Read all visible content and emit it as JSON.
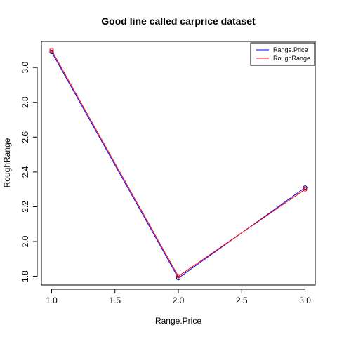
{
  "chart_data": {
    "type": "line",
    "title": "Good line called carprice dataset",
    "xlabel": "Range.Price",
    "ylabel": "RoughRange",
    "xlim": [
      0.92,
      3.08
    ],
    "ylim": [
      1.75,
      3.15
    ],
    "x_ticks": [
      "1.0",
      "1.5",
      "2.0",
      "2.5",
      "3.0"
    ],
    "y_ticks": [
      "1.8",
      "2.0",
      "2.2",
      "2.4",
      "2.6",
      "2.8",
      "3.0"
    ],
    "grid": false,
    "legend_position": "top-right",
    "x": [
      1.0,
      2.0,
      3.0
    ],
    "series": [
      {
        "name": "Range.Price",
        "values": [
          3.09,
          1.79,
          2.31
        ],
        "color": "#0000ff"
      },
      {
        "name": "RoughRange",
        "values": [
          3.1,
          1.8,
          2.3
        ],
        "color": "#ff0000"
      }
    ]
  },
  "point_symbol_color": "#00008b"
}
